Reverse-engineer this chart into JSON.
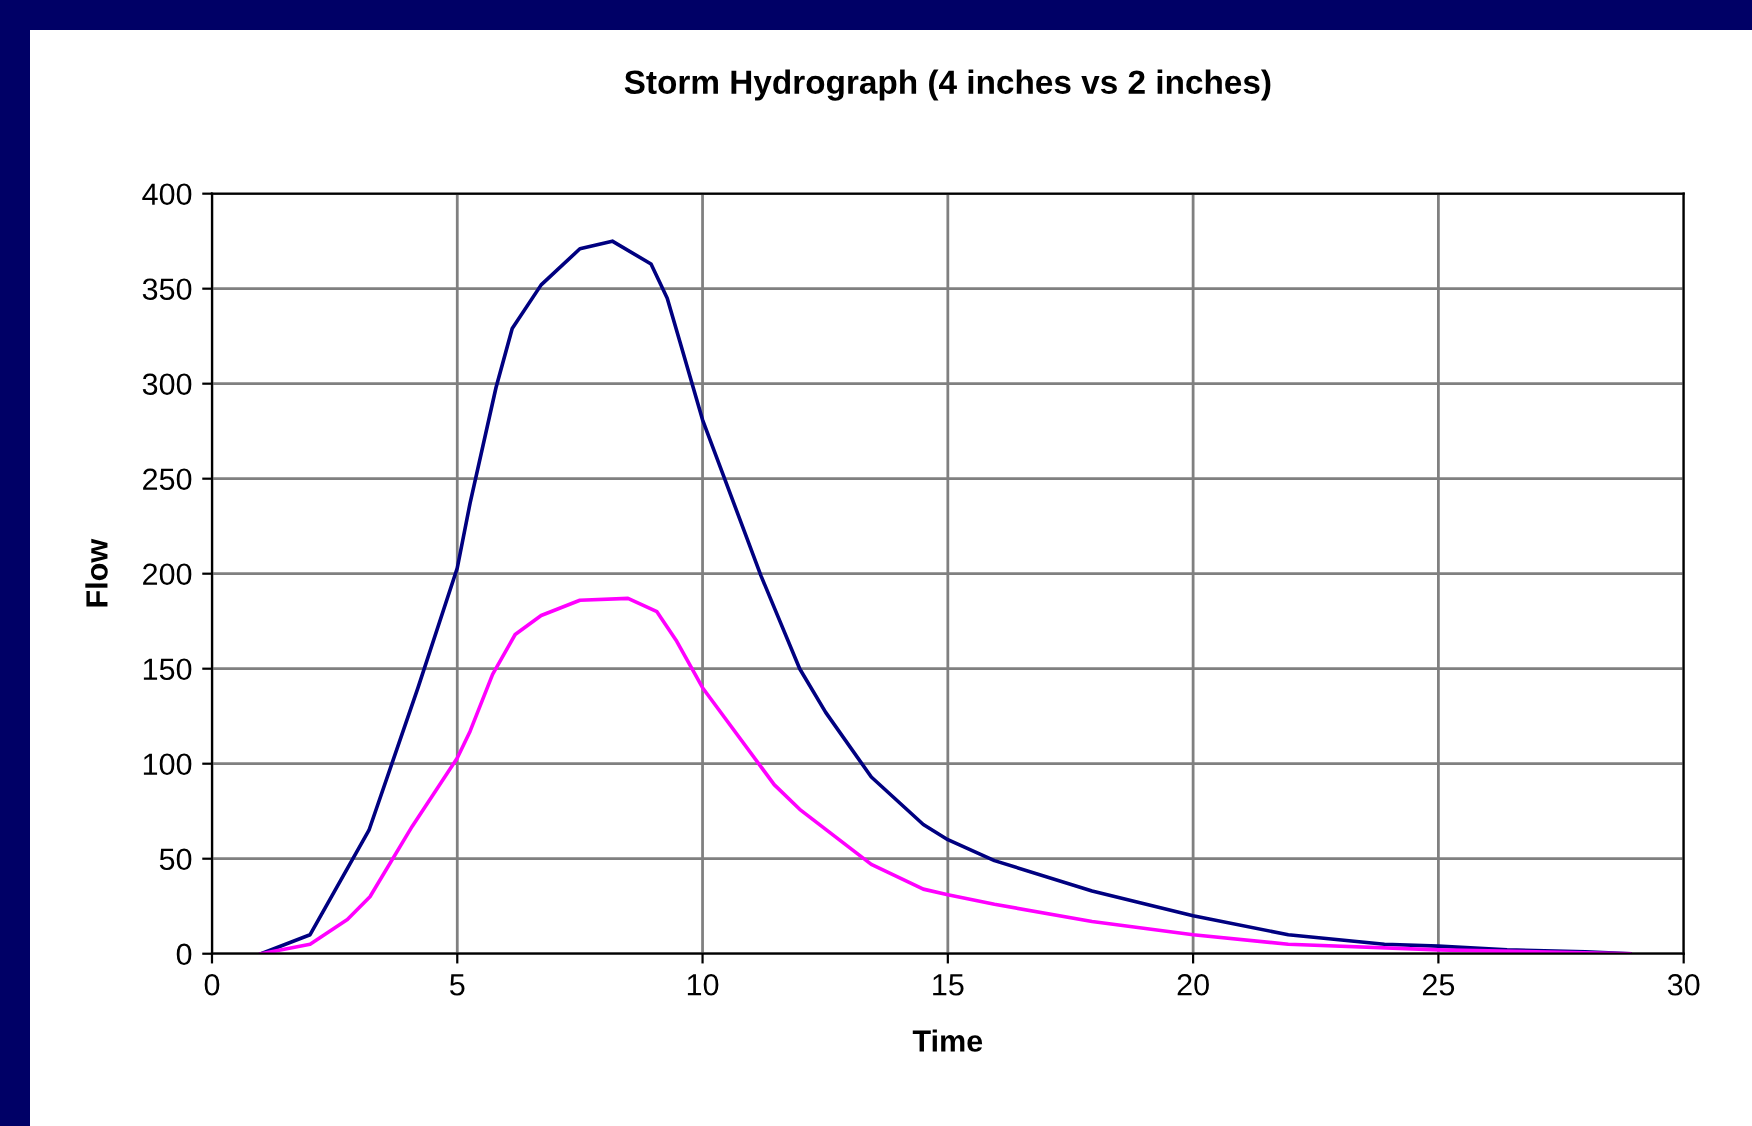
{
  "chart_data": {
    "type": "line",
    "title": "Storm Hydrograph (4 inches vs 2 inches)",
    "xlabel": "Time",
    "ylabel": "Flow",
    "xlim": [
      0,
      30
    ],
    "xticks": [
      0,
      5,
      10,
      15,
      20,
      25,
      30
    ],
    "ylim": [
      0,
      400
    ],
    "yticks": [
      0,
      50,
      100,
      150,
      200,
      250,
      300,
      350,
      400
    ],
    "grid": true,
    "series": [
      {
        "color": "#000080",
        "x": [
          1,
          2,
          3.2,
          4.2,
          5,
          5.26,
          5.79,
          6.12,
          6.71,
          7.5,
          8.16,
          8.95,
          9.28,
          9.54,
          10,
          11.19,
          11.98,
          12.51,
          13.44,
          14.5,
          15,
          15.95,
          17.94,
          20,
          21.94,
          23.9,
          25,
          26.4,
          28,
          28.9
        ],
        "values": [
          0,
          10,
          65,
          140,
          203,
          237,
          298,
          329,
          352,
          371,
          375,
          363,
          345,
          322,
          281,
          199,
          150,
          127,
          93,
          68,
          60,
          49,
          33,
          20,
          10,
          5,
          4,
          2,
          1,
          0
        ]
      },
      {
        "color": "#ff00ff",
        "x": [
          1,
          2,
          2.76,
          3.22,
          4.08,
          5,
          5.26,
          5.72,
          6.18,
          6.71,
          7.5,
          8.48,
          9.07,
          9.46,
          10,
          11.46,
          11.98,
          13.44,
          14.5,
          15,
          15.95,
          17.94,
          20,
          21.94,
          25,
          28.9
        ],
        "values": [
          0,
          5,
          18,
          30,
          67,
          103,
          117,
          147,
          168,
          178,
          186,
          187,
          180,
          165,
          140,
          89,
          76,
          47,
          34,
          31,
          26,
          17,
          10,
          5,
          2,
          0
        ]
      }
    ]
  }
}
